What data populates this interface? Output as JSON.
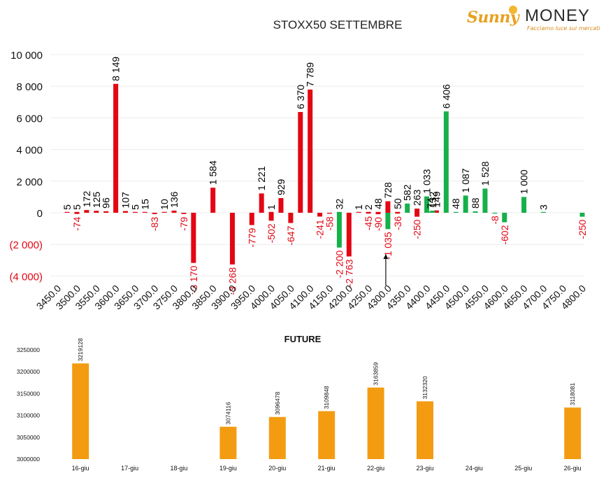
{
  "logo": {
    "name_a": "Sunny",
    "name_b": "MONEY",
    "tagline": "Facciamo luce sui mercati"
  },
  "colors": {
    "put": "#e30613",
    "call": "#16b04a",
    "future": "#f39c12",
    "positive_label": "#000000",
    "negative_label": "#e30613"
  },
  "chart_data": [
    {
      "type": "bar",
      "title": "STOXX50 SETTEMBRE",
      "ylim": [
        -4500,
        10000
      ],
      "yticks": [
        {
          "value": 10000,
          "label": "10 000"
        },
        {
          "value": 8000,
          "label": "8 000"
        },
        {
          "value": 6000,
          "label": "6 000"
        },
        {
          "value": 4000,
          "label": "4 000"
        },
        {
          "value": 2000,
          "label": "2 000"
        },
        {
          "value": 0,
          "label": "0"
        },
        {
          "value": -2000,
          "label": "(2 000)"
        },
        {
          "value": -4000,
          "label": "(4 000)"
        }
      ],
      "categories": [
        "3450.0",
        "3500.0",
        "3550.0",
        "3600.0",
        "3650.0",
        "3700.0",
        "3750.0",
        "3800.0",
        "3850.0",
        "3900.0",
        "3950.0",
        "4000.0",
        "4050.0",
        "4100.0",
        "4150.0",
        "4200.0",
        "4250.0",
        "4300.0",
        "4350.0",
        "4400.0",
        "4450.0",
        "4500.0",
        "4550.0",
        "4600.0",
        "4650.0",
        "4700.0",
        "4750.0",
        "4800.0"
      ],
      "series": [
        {
          "key": "put",
          "bars": [
            {
              "strike": 3475,
              "value": 5,
              "label": "5"
            },
            {
              "strike": 3500,
              "value": 5,
              "label": "5"
            },
            {
              "strike": 3500,
              "value": -74,
              "label": "-74"
            },
            {
              "strike": 3525,
              "value": 172,
              "label": "172"
            },
            {
              "strike": 3550,
              "value": 125,
              "label": "125"
            },
            {
              "strike": 3575,
              "value": 96,
              "label": "96"
            },
            {
              "strike": 3600,
              "value": 8149,
              "label": "8 149"
            },
            {
              "strike": 3625,
              "value": 107,
              "label": "107"
            },
            {
              "strike": 3650,
              "value": 5,
              "label": "5"
            },
            {
              "strike": 3675,
              "value": 15,
              "label": "15"
            },
            {
              "strike": 3700,
              "value": -83,
              "label": "-83"
            },
            {
              "strike": 3725,
              "value": 10,
              "label": "10"
            },
            {
              "strike": 3750,
              "value": 136,
              "label": "136"
            },
            {
              "strike": 3775,
              "value": -79,
              "label": "-79"
            },
            {
              "strike": 3800,
              "value": -3170,
              "label": "-3 170"
            },
            {
              "strike": 3850,
              "value": 1584,
              "label": "1 584"
            },
            {
              "strike": 3900,
              "value": -3268,
              "label": "-3 268"
            },
            {
              "strike": 3950,
              "value": -779,
              "label": "-779"
            },
            {
              "strike": 3975,
              "value": 1221,
              "label": "1 221"
            },
            {
              "strike": 4000,
              "value": 1,
              "label": "1"
            },
            {
              "strike": 4000,
              "value": -502,
              "label": "-502"
            },
            {
              "strike": 4025,
              "value": 929,
              "label": "929"
            },
            {
              "strike": 4050,
              "value": -647,
              "label": "-647"
            },
            {
              "strike": 4075,
              "value": 6370,
              "label": "6 370"
            },
            {
              "strike": 4100,
              "value": 7789,
              "label": "7 789"
            },
            {
              "strike": 4125,
              "value": -241,
              "label": "-241"
            },
            {
              "strike": 4150,
              "value": -58,
              "label": "-58"
            },
            {
              "strike": 4200,
              "value": -2763,
              "label": "-2 763"
            },
            {
              "strike": 4225,
              "value": 1,
              "label": "1"
            },
            {
              "strike": 4250,
              "value": 2,
              "label": "2"
            },
            {
              "strike": 4250,
              "value": -45,
              "label": "-45"
            },
            {
              "strike": 4275,
              "value": 48,
              "label": "48"
            },
            {
              "strike": 4275,
              "value": -90,
              "label": "-90"
            },
            {
              "strike": 4300,
              "value": 728,
              "label": "728"
            },
            {
              "strike": 4325,
              "value": 50,
              "label": "50"
            },
            {
              "strike": 4325,
              "value": -36,
              "label": "-36"
            },
            {
              "strike": 4375,
              "value": 263,
              "label": "263"
            },
            {
              "strike": 4375,
              "value": -250,
              "label": "-250"
            },
            {
              "strike": 4425,
              "value": 149,
              "label": "149"
            }
          ]
        },
        {
          "key": "call",
          "bars": [
            {
              "strike": 4175,
              "value": 32,
              "label": "32"
            },
            {
              "strike": 4175,
              "value": -2200,
              "label": "-2 200"
            },
            {
              "strike": 4300,
              "value": -1035,
              "label": "-1 035"
            },
            {
              "strike": 4350,
              "value": 582,
              "label": "582"
            },
            {
              "strike": 4400,
              "value": 1033,
              "label": "1 033"
            },
            {
              "strike": 4410,
              "value": 74,
              "label": "74"
            },
            {
              "strike": 4415,
              "value": 132,
              "label": "132"
            },
            {
              "strike": 4450,
              "value": 6406,
              "label": "6 406"
            },
            {
              "strike": 4475,
              "value": 48,
              "label": "48"
            },
            {
              "strike": 4500,
              "value": 1087,
              "label": "1 087"
            },
            {
              "strike": 4525,
              "value": 88,
              "label": "88"
            },
            {
              "strike": 4550,
              "value": 1528,
              "label": "1 528"
            },
            {
              "strike": 4575,
              "value": -8,
              "label": "-8"
            },
            {
              "strike": 4600,
              "value": -602,
              "label": "-602"
            },
            {
              "strike": 4650,
              "value": 1000,
              "label": "1 000"
            },
            {
              "strike": 4700,
              "value": 3,
              "label": "3"
            },
            {
              "strike": 4800,
              "value": -250,
              "label": "-250"
            }
          ]
        }
      ],
      "current_price_marker": 4300
    },
    {
      "type": "bar",
      "title": "FUTURE",
      "categories": [
        "16-giu",
        "17-giu",
        "18-giu",
        "19-giu",
        "20-giu",
        "21-giu",
        "22-giu",
        "23-giu",
        "24-giu",
        "25-giu",
        "26-giu"
      ],
      "values": [
        3219128,
        null,
        null,
        3074116,
        3096478,
        3109848,
        3163859,
        3132320,
        null,
        null,
        3118081
      ],
      "ylim": [
        3000000,
        3250000
      ],
      "yticks": [
        "3250000",
        "3200000",
        "3150000",
        "3100000",
        "3050000",
        "3000000"
      ]
    }
  ]
}
